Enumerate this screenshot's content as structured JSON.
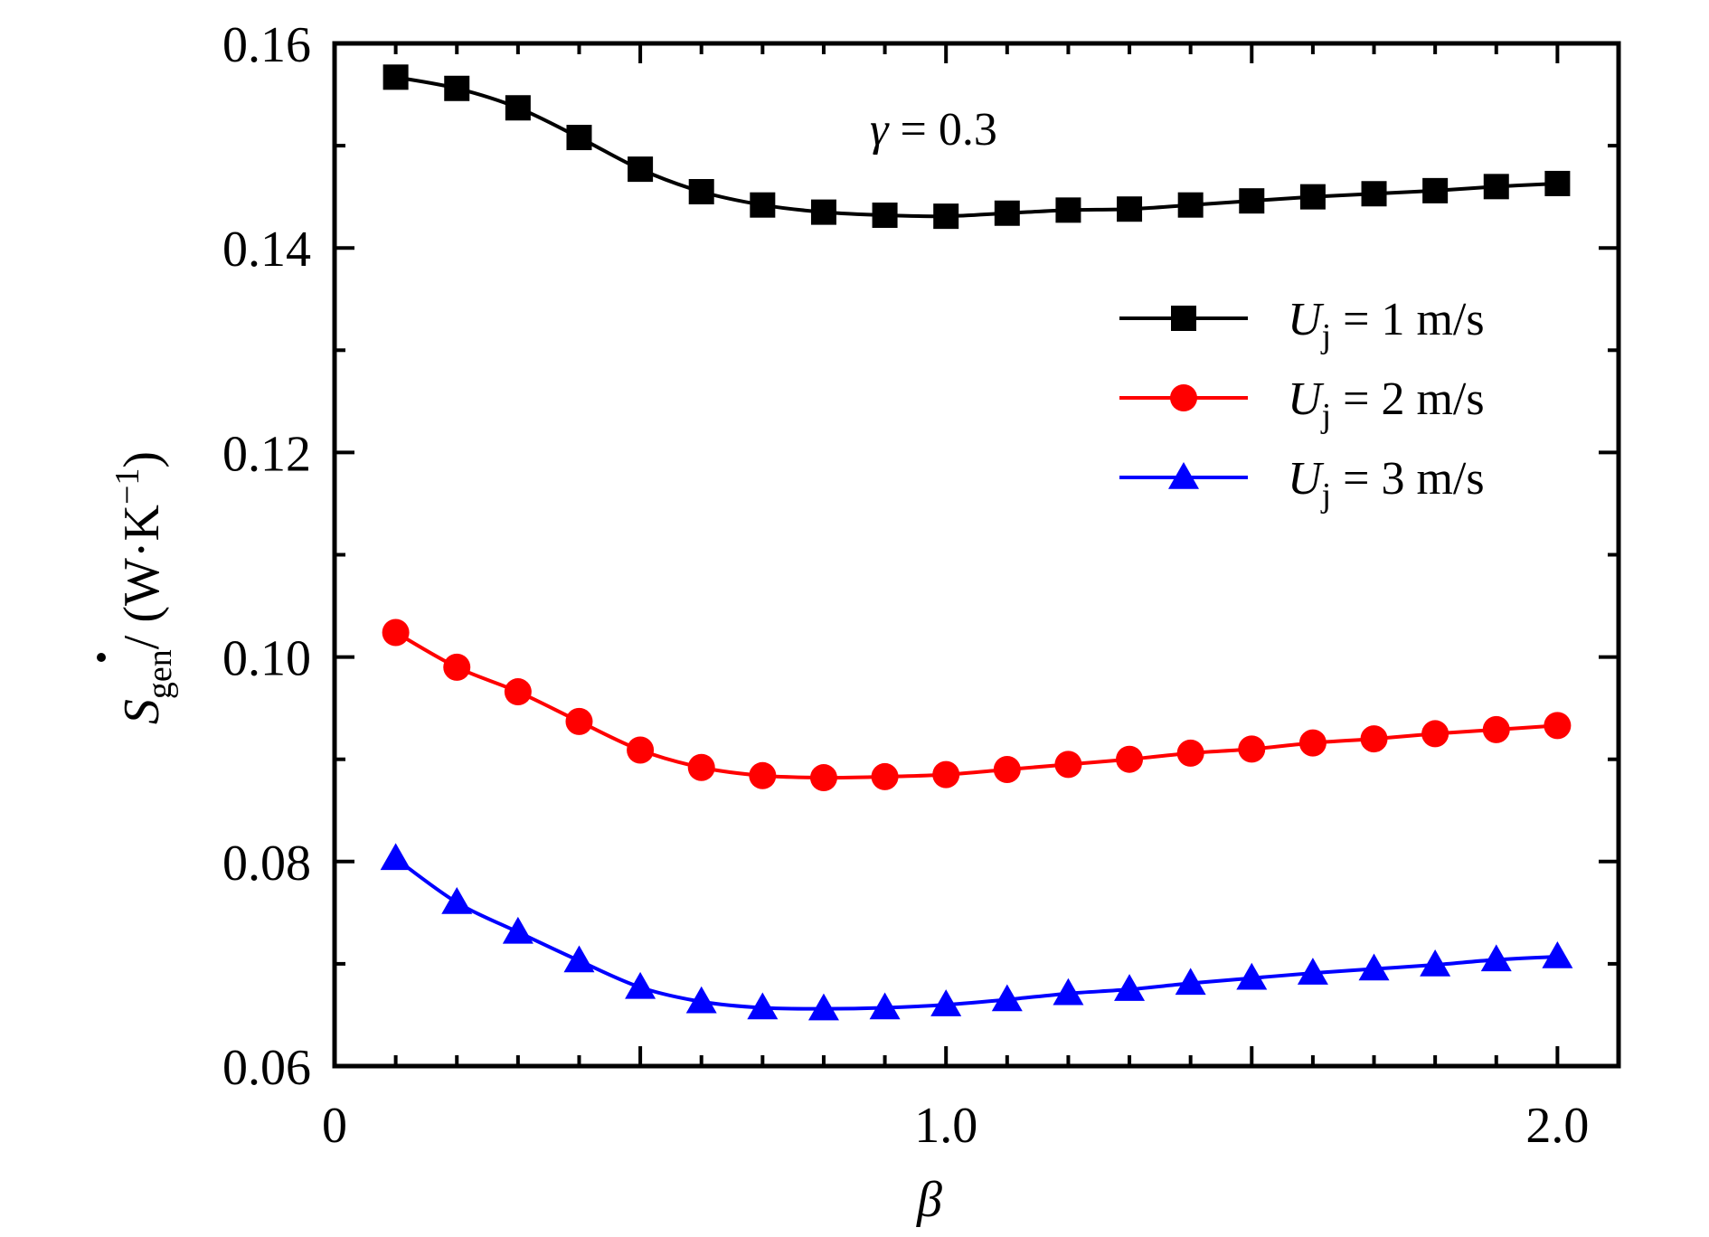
{
  "chart_data": {
    "type": "line",
    "xlabel": "β",
    "ylabel": {
      "symbol": "S",
      "subscript": "gen",
      "unit_open": "/ (W·K",
      "unit_exp": "−1",
      "unit_close": ")"
    },
    "xlim": [
      0,
      2.1
    ],
    "ylim": [
      0.06,
      0.16
    ],
    "xticks": [
      {
        "value": 0,
        "label": "0"
      },
      {
        "value": 1.0,
        "label": "1.0"
      },
      {
        "value": 2.0,
        "label": "2.0"
      }
    ],
    "yticks": [
      {
        "value": 0.06,
        "label": "0.06"
      },
      {
        "value": 0.08,
        "label": "0.08"
      },
      {
        "value": 0.1,
        "label": "0.10"
      },
      {
        "value": 0.12,
        "label": "0.12"
      },
      {
        "value": 0.14,
        "label": "0.14"
      },
      {
        "value": 0.16,
        "label": "0.16"
      }
    ],
    "annotation": {
      "symbol": "γ",
      "text": " = 0.3"
    },
    "legend_position": "top-right",
    "grid": false,
    "x": [
      0.1,
      0.2,
      0.3,
      0.4,
      0.5,
      0.6,
      0.7,
      0.8,
      0.9,
      1.0,
      1.1,
      1.2,
      1.3,
      1.4,
      1.5,
      1.6,
      1.7,
      1.8,
      1.9,
      2.0
    ],
    "series": [
      {
        "name": "Uj = 1 m/s",
        "label_symbol": "U",
        "label_sub": "j",
        "label_rest": " = 1 m/s",
        "color": "#000000",
        "marker": "square",
        "values": [
          0.1567,
          0.1556,
          0.1537,
          0.1508,
          0.1477,
          0.1455,
          0.1442,
          0.1435,
          0.1432,
          0.1431,
          0.1434,
          0.1437,
          0.1438,
          0.1442,
          0.1446,
          0.145,
          0.1453,
          0.1456,
          0.146,
          0.1463
        ]
      },
      {
        "name": "Uj = 2 m/s",
        "label_symbol": "U",
        "label_sub": "j",
        "label_rest": " = 2 m/s",
        "color": "#ff0000",
        "marker": "circle",
        "values": [
          0.1024,
          0.099,
          0.0966,
          0.0937,
          0.0909,
          0.0892,
          0.0884,
          0.0882,
          0.0883,
          0.0885,
          0.089,
          0.0895,
          0.09,
          0.0906,
          0.091,
          0.0916,
          0.092,
          0.0925,
          0.0929,
          0.0933
        ]
      },
      {
        "name": "Uj = 3 m/s",
        "label_symbol": "U",
        "label_sub": "j",
        "label_rest": " = 3 m/s",
        "color": "#0000ff",
        "marker": "triangle",
        "values": [
          0.0803,
          0.076,
          0.0731,
          0.0703,
          0.0677,
          0.0663,
          0.0657,
          0.0656,
          0.0657,
          0.066,
          0.0665,
          0.0671,
          0.0675,
          0.0681,
          0.0686,
          0.0691,
          0.0695,
          0.0699,
          0.0704,
          0.0707
        ]
      }
    ]
  }
}
